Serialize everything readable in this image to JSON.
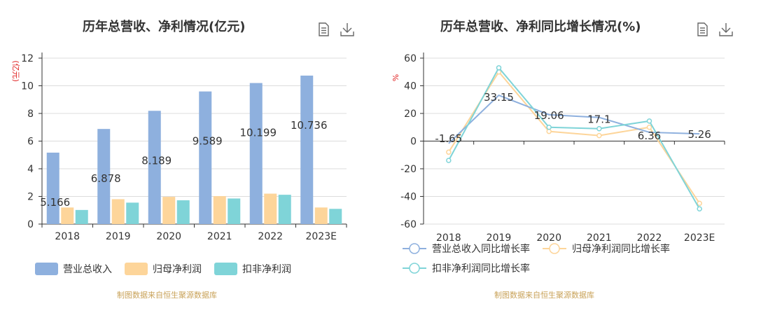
{
  "left": {
    "title": "历年总营收、净利情况(亿元)",
    "source": "制图数据来自恒生聚源数据库",
    "toolbar": {
      "data_view_icon": "document-icon",
      "download_icon": "download-icon"
    }
  },
  "right": {
    "title": "历年总营收、净利同比增长情况(%)",
    "source": "制图数据来自恒生聚源数据库",
    "toolbar": {
      "data_view_icon": "document-icon",
      "download_icon": "download-icon"
    }
  },
  "chart_data": [
    {
      "type": "bar",
      "title": "历年总营收、净利情况(亿元)",
      "ylabel": "(亿元)",
      "ylim": [
        0,
        12
      ],
      "yticks": [
        0,
        2,
        4,
        6,
        8,
        10,
        12
      ],
      "grid": true,
      "legend_position": "bottom-left",
      "categories": [
        "2018",
        "2019",
        "2020",
        "2021",
        "2022",
        "2023E"
      ],
      "series": [
        {
          "name": "营业总收入",
          "color": "#8eb0de",
          "values": [
            5.166,
            6.878,
            8.189,
            9.589,
            10.199,
            10.736
          ],
          "labels": [
            "5.166",
            "6.878",
            "8.189",
            "9.589",
            "10.199",
            "10.736"
          ]
        },
        {
          "name": "归母净利润",
          "color": "#fdd59a",
          "values": [
            1.2,
            1.8,
            1.97,
            2.02,
            2.2,
            1.2
          ]
        },
        {
          "name": "扣非净利润",
          "color": "#7fd4d8",
          "values": [
            1.02,
            1.55,
            1.72,
            1.85,
            2.12,
            1.1
          ]
        }
      ]
    },
    {
      "type": "line",
      "title": "历年总营收、净利同比增长情况(%)",
      "ylabel": "%",
      "ylim": [
        -60,
        60
      ],
      "yticks": [
        -60,
        -40,
        -20,
        0,
        20,
        40,
        60
      ],
      "grid": true,
      "legend_position": "bottom-left",
      "categories": [
        "2018",
        "2019",
        "2020",
        "2021",
        "2022",
        "2023E"
      ],
      "series": [
        {
          "name": "营业总收入同比增长率",
          "color": "#8eb0de",
          "values": [
            -1.65,
            33.15,
            19.06,
            17.1,
            6.36,
            5.26
          ],
          "labels": [
            "-1.65",
            "33.15",
            "19.06",
            "17.1",
            "6.36",
            "5.26"
          ]
        },
        {
          "name": "归母净利润同比增长率",
          "color": "#fdd59a",
          "values": [
            -8,
            50,
            7,
            4,
            10,
            -45
          ]
        },
        {
          "name": "扣非净利润同比增长率",
          "color": "#7fd4d8",
          "values": [
            -14,
            53,
            10,
            9,
            14.5,
            -49
          ]
        }
      ]
    }
  ]
}
